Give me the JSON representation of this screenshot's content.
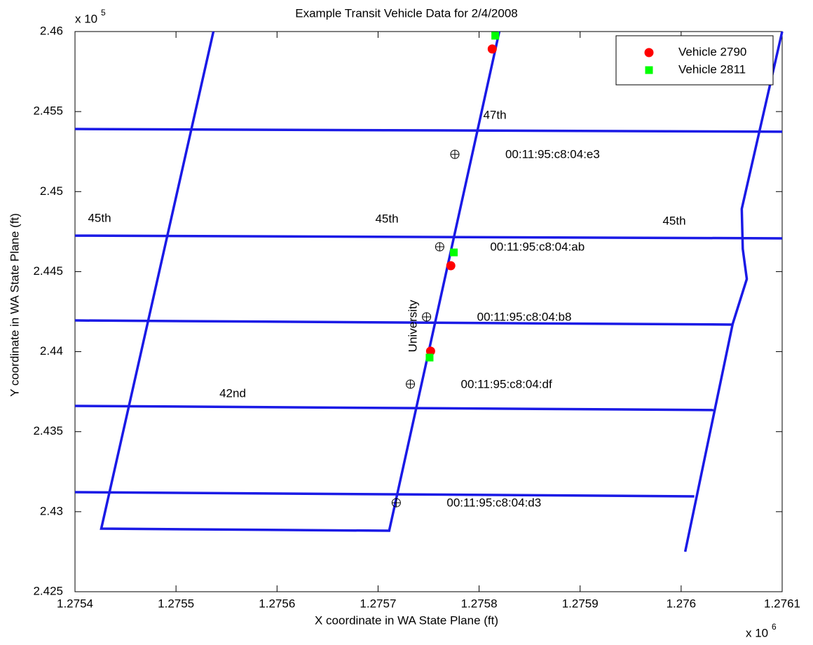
{
  "chart_data": {
    "type": "scatter",
    "title": "Example Transit Vehicle Data for 2/4/2008",
    "xlabel": "X coordinate in WA State Plane (ft)",
    "ylabel": "Y coordinate in WA State Plane (ft)",
    "x_multiplier": "x 10",
    "x_multiplier_exponent": "6",
    "y_multiplier": "x 10",
    "y_multiplier_exponent": "5",
    "xlim": [
      1.2754,
      1.2761
    ],
    "xticks": [
      1.2754,
      1.2755,
      1.2756,
      1.2757,
      1.2758,
      1.2759,
      1.276,
      1.2761
    ],
    "ylim": [
      2.425,
      2.46
    ],
    "yticks": [
      2.425,
      2.43,
      2.435,
      2.44,
      2.445,
      2.45,
      2.455,
      2.46
    ],
    "legend": "upper right",
    "series": [
      {
        "name": "Vehicle 2790",
        "color": "#ff0000",
        "marker": "circle",
        "x": [
          1.275813,
          1.275772,
          1.275752
        ],
        "y": [
          2.45891,
          2.44537,
          2.44003
        ]
      },
      {
        "name": "Vehicle 2811",
        "color": "#00ff00",
        "marker": "square",
        "x": [
          1.275816,
          1.275775,
          1.275751
        ],
        "y": [
          2.45974,
          2.4462,
          2.43963
        ]
      }
    ],
    "access_points": {
      "x": [
        1.275776,
        1.275761,
        1.275748,
        1.275732,
        1.275718
      ],
      "y": [
        2.45233,
        2.44655,
        2.44217,
        2.43797,
        2.43056
      ],
      "labels": [
        "00:11:95:c8:04:e3",
        "00:11:95:c8:04:ab",
        "00:11:95:c8:04:b8",
        "00:11:95:c8:04:df",
        "00:11:95:c8:04:d3"
      ]
    },
    "road_color": "#1a1ae6",
    "roads": [
      {
        "x": [
          1.275537,
          1.275426,
          1.275711,
          1.27582
        ],
        "y": [
          2.46,
          2.42894,
          2.42881,
          2.46
        ]
      },
      {
        "x": [
          1.276004,
          1.276051,
          1.276065,
          1.276061,
          1.27606,
          1.2761
        ],
        "y": [
          2.4275,
          2.44173,
          2.44454,
          2.44642,
          2.44892,
          2.46
        ]
      },
      {
        "x": [
          1.2754,
          1.2761
        ],
        "y": [
          2.45391,
          2.45374
        ]
      },
      {
        "x": [
          1.2754,
          1.2761
        ],
        "y": [
          2.44725,
          2.44708
        ]
      },
      {
        "x": [
          1.2754,
          1.276051
        ],
        "y": [
          2.44195,
          2.44169
        ]
      },
      {
        "x": [
          1.2754,
          1.276032
        ],
        "y": [
          2.43661,
          2.43635
        ]
      },
      {
        "x": [
          1.2754,
          1.276013
        ],
        "y": [
          2.43122,
          2.43096
        ]
      }
    ],
    "annotations": [
      "47th",
      "45th",
      "45th",
      "45th",
      "University",
      "42nd"
    ]
  }
}
